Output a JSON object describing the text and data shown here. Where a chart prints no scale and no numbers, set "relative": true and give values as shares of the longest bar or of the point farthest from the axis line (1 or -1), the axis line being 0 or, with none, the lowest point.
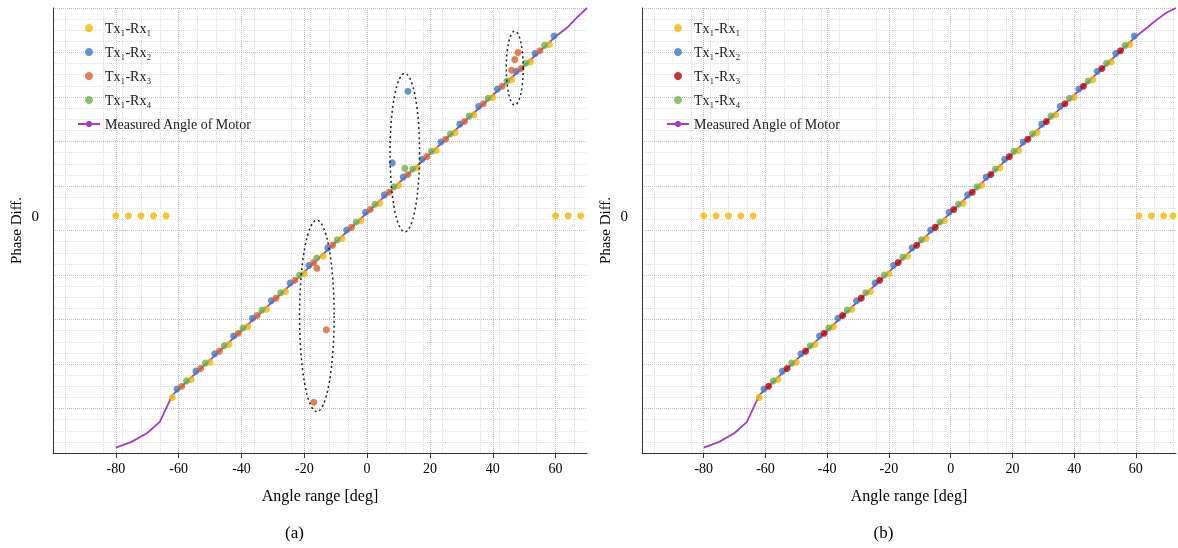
{
  "chart_data": [
    {
      "type": "scatter",
      "title": "(a)",
      "xlabel": "Angle range [deg]",
      "ylabel": "Phase Diff.",
      "relative": true,
      "xlim": [
        -100,
        70
      ],
      "xticks": [
        -80,
        -60,
        -40,
        -20,
        0,
        20,
        40,
        60
      ],
      "grid": true,
      "legend": "top left",
      "marker": "circle",
      "annotations": [
        "0"
      ],
      "series": [
        {
          "name": "Tx₁-Rx₁",
          "color": "#f5b800",
          "x": [
            -80,
            -76,
            -72,
            -68,
            -64,
            -62,
            -56,
            -50,
            -44,
            -38,
            -32,
            -26,
            -20,
            -14,
            -8,
            -2,
            4,
            10,
            16,
            22,
            28,
            34,
            40,
            46,
            52,
            58,
            60,
            64,
            68
          ],
          "values": [
            0.533,
            0.533,
            0.533,
            0.533,
            0.533,
            0.125,
            0.165,
            0.204,
            0.244,
            0.284,
            0.323,
            0.363,
            0.403,
            0.442,
            0.482,
            0.522,
            0.561,
            0.601,
            0.641,
            0.68,
            0.72,
            0.76,
            0.799,
            0.839,
            0.879,
            0.918,
            0.533,
            0.533,
            0.533
          ]
        },
        {
          "name": "Tx₁-Rx₂",
          "color": "#3a7cc4",
          "x": [
            -60.5,
            -54.5,
            -48.5,
            -42.5,
            -36.5,
            -30.5,
            -24.5,
            -18.5,
            -12.5,
            -6.5,
            -0.5,
            5.5,
            11.5,
            17.5,
            23.5,
            29.5,
            35.5,
            41.5,
            47.5,
            53.5,
            59.5,
            8,
            13
          ],
          "values": [
            0.144,
            0.184,
            0.223,
            0.263,
            0.303,
            0.342,
            0.382,
            0.422,
            0.461,
            0.501,
            0.541,
            0.58,
            0.62,
            0.66,
            0.699,
            0.739,
            0.779,
            0.818,
            0.858,
            0.898,
            0.937,
            0.652,
            0.813
          ]
        },
        {
          "name": "Tx₁-Rx₃",
          "color": "#d9622b",
          "x": [
            -59,
            -53,
            -47,
            -41,
            -35,
            -29,
            -23,
            -17,
            -11,
            -5,
            1,
            7,
            13,
            19,
            25,
            31,
            37,
            43,
            49,
            55,
            -17,
            -13,
            -16,
            48,
            47,
            46
          ],
          "values": [
            0.15,
            0.19,
            0.229,
            0.269,
            0.309,
            0.348,
            0.388,
            0.428,
            0.467,
            0.507,
            0.547,
            0.586,
            0.626,
            0.666,
            0.705,
            0.745,
            0.785,
            0.824,
            0.864,
            0.904,
            0.114,
            0.277,
            0.415,
            0.9,
            0.884,
            0.86
          ]
        },
        {
          "name": "Tx₁-Rx₄",
          "color": "#6ab04c",
          "x": [
            -57.5,
            -51.5,
            -45.5,
            -39.5,
            -33.5,
            -27.5,
            -21.5,
            -15.5,
            -9.5,
            -3.5,
            2.5,
            8.5,
            14.5,
            20.5,
            26.5,
            32.5,
            38.5,
            44.5,
            50.5,
            56.5,
            12,
            -16
          ],
          "values": [
            0.162,
            0.202,
            0.241,
            0.281,
            0.321,
            0.36,
            0.4,
            null,
            0.479,
            0.519,
            0.559,
            0.598,
            0.638,
            0.678,
            0.717,
            0.757,
            0.797,
            0.836,
            0.876,
            0.916,
            0.64,
            0.438
          ]
        },
        {
          "name": "Measured Angle of Motor",
          "type": "line",
          "marker": "none",
          "color": "#a040c0",
          "x": [
            -80,
            -75,
            -70,
            -66,
            -62,
            -40,
            -20,
            0,
            20,
            40,
            60,
            64,
            67,
            70
          ],
          "values": [
            0.012,
            0.025,
            0.045,
            0.07,
            0.13,
            0.275,
            0.407,
            0.54,
            0.672,
            0.804,
            0.936,
            0.958,
            0.98,
            1.0
          ]
        }
      ]
    },
    {
      "type": "scatter",
      "title": "(b)",
      "xlabel": "Angle range [deg]",
      "ylabel": "Phase Diff.",
      "relative": true,
      "xlim": [
        -100,
        73
      ],
      "xticks": [
        -80,
        -60,
        -40,
        -20,
        0,
        20,
        40,
        60
      ],
      "grid": true,
      "legend": "top left",
      "marker": "circle",
      "annotations": [
        "0"
      ],
      "series": [
        {
          "name": "Tx₁-Rx₁",
          "color": "#f5b800",
          "x": [
            -80,
            -76,
            -72,
            -68,
            -64,
            -62,
            -56,
            -50,
            -44,
            -38,
            -32,
            -26,
            -20,
            -14,
            -8,
            -2,
            4,
            10,
            16,
            22,
            28,
            34,
            40,
            46,
            52,
            58,
            61,
            65,
            69,
            72
          ],
          "values": [
            0.533,
            0.533,
            0.533,
            0.533,
            0.533,
            0.125,
            0.165,
            0.204,
            0.244,
            0.284,
            0.323,
            0.363,
            0.403,
            0.442,
            0.482,
            0.522,
            0.561,
            0.601,
            0.641,
            0.68,
            0.72,
            0.76,
            0.799,
            0.839,
            0.879,
            0.918,
            0.533,
            0.533,
            0.533,
            0.533
          ]
        },
        {
          "name": "Tx₁-Rx₂",
          "color": "#3a7cc4",
          "x": [
            -60.5,
            -54.5,
            -48.5,
            -42.5,
            -36.5,
            -30.5,
            -24.5,
            -18.5,
            -12.5,
            -6.5,
            -0.5,
            5.5,
            11.5,
            17.5,
            23.5,
            29.5,
            35.5,
            41.5,
            47.5,
            53.5,
            59.5
          ],
          "values": [
            0.144,
            0.184,
            0.223,
            0.263,
            0.303,
            0.342,
            0.382,
            0.422,
            0.461,
            0.501,
            0.541,
            0.58,
            0.62,
            0.66,
            0.699,
            0.739,
            0.779,
            0.818,
            0.858,
            0.898,
            0.937
          ]
        },
        {
          "name": "Tx₁-Rx₃",
          "color": "#c00000",
          "x": [
            -59,
            -53,
            -47,
            -41,
            -35,
            -29,
            -23,
            -17,
            -11,
            -5,
            1,
            7,
            13,
            19,
            25,
            31,
            37,
            43,
            49,
            55
          ],
          "values": [
            0.15,
            0.19,
            0.229,
            0.269,
            0.309,
            0.348,
            0.388,
            0.428,
            0.467,
            0.507,
            0.547,
            0.586,
            0.626,
            0.666,
            0.705,
            0.745,
            0.785,
            0.824,
            0.864,
            0.904
          ]
        },
        {
          "name": "Tx₁-Rx₄",
          "color": "#6ab04c",
          "x": [
            -57.5,
            -51.5,
            -45.5,
            -39.5,
            -33.5,
            -27.5,
            -21.5,
            -15.5,
            -9.5,
            -3.5,
            2.5,
            8.5,
            14.5,
            20.5,
            26.5,
            32.5,
            38.5,
            44.5,
            50.5,
            56.5
          ],
          "values": [
            0.162,
            0.202,
            0.241,
            0.281,
            0.321,
            0.36,
            0.4,
            0.44,
            0.479,
            0.519,
            0.559,
            0.598,
            0.638,
            0.678,
            0.717,
            0.757,
            0.797,
            0.836,
            0.876,
            0.916
          ]
        },
        {
          "name": "Measured Angle of Motor",
          "type": "line",
          "marker": "none",
          "color": "#a040c0",
          "x": [
            -80,
            -75,
            -70,
            -66,
            -62,
            -40,
            -20,
            0,
            20,
            40,
            60,
            64,
            67,
            70,
            73
          ],
          "values": [
            0.012,
            0.025,
            0.045,
            0.07,
            0.13,
            0.275,
            0.407,
            0.54,
            0.672,
            0.804,
            0.936,
            0.958,
            0.975,
            0.99,
            1.0
          ]
        }
      ]
    }
  ]
}
